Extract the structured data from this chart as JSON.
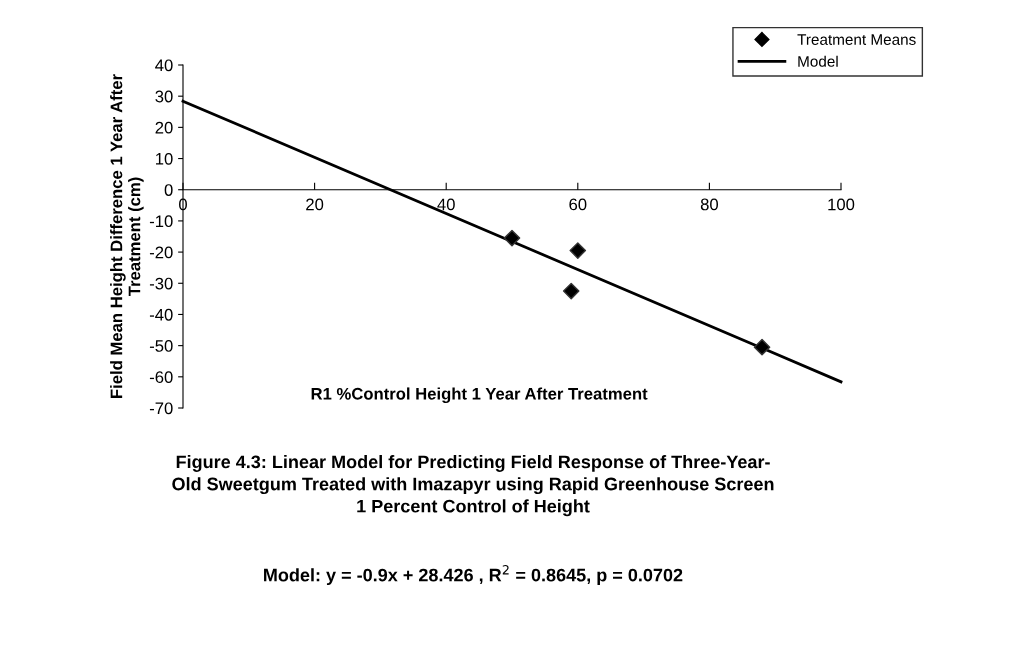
{
  "chart_data": {
    "type": "scatter",
    "xlabel": "R1 %Control Height 1 Year After Treatment",
    "ylabel": "Field Mean Height Difference 1 Year After\nTreatment (cm)",
    "series": [
      {
        "name": "Treatment Means",
        "color": "#000000",
        "marker": "diamond",
        "x": [
          50,
          59,
          60,
          88
        ],
        "values": [
          -15.5,
          -32.5,
          -19.5,
          -50.5
        ]
      },
      {
        "name": "Model",
        "type": "line",
        "color": "#000000",
        "marker": "none",
        "line_style": "solid",
        "x": [
          0,
          100
        ],
        "values": [
          28.4,
          -61.6
        ]
      }
    ],
    "xlim": [
      0,
      100
    ],
    "xticks": [
      0,
      20,
      40,
      60,
      80,
      100
    ],
    "ylim": [
      -70,
      40
    ],
    "yticks": [
      -70,
      -60,
      -50,
      -40,
      -30,
      -20,
      -10,
      0,
      10,
      20,
      30,
      40
    ],
    "grid": false,
    "legend": "top right",
    "annotations": [
      "Figure 4.3: Linear Model for Predicting Field Response of Three-Year-\nOld Sweetgum Treated with Imazapyr using Rapid Greenhouse Screen\n1 Percent Control of Height",
      "Model: y = -0.9x + 28.426 , R$^{2}$ = 0.8645, p = 0.0702"
    ]
  }
}
